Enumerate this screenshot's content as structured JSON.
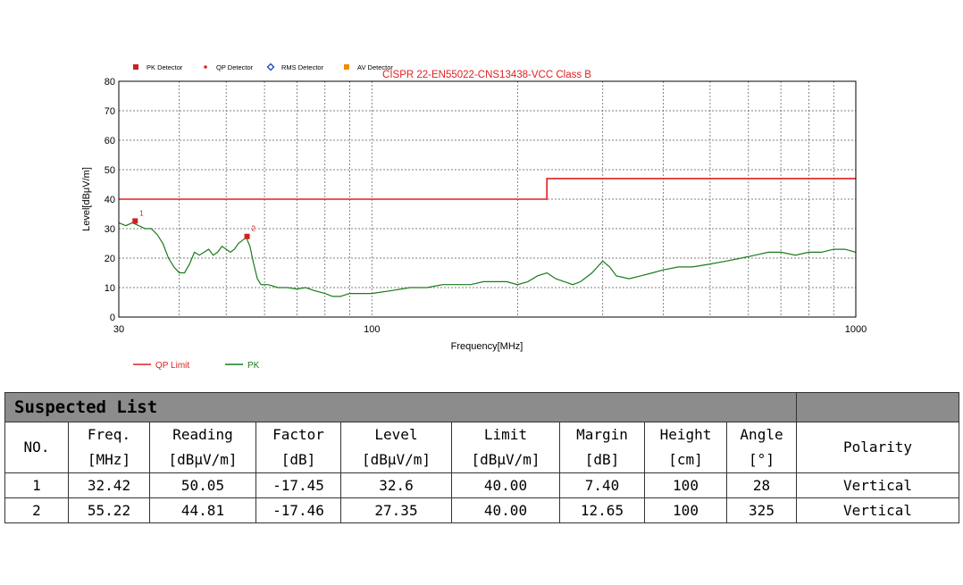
{
  "chart_data": {
    "type": "line",
    "title": "CISPR 22-EN55022-CNS13438-VCC Class B",
    "xlabel": "Frequency[MHz]",
    "ylabel": "Level[dBμV/m]",
    "xscale": "log",
    "xlim": [
      30,
      1000
    ],
    "ylim": [
      0,
      80
    ],
    "yticks": [
      0,
      10,
      20,
      30,
      40,
      50,
      60,
      70,
      80
    ],
    "xtick_labels": [
      {
        "value": 30,
        "label": "30"
      },
      {
        "value": 100,
        "label": "100"
      },
      {
        "value": 1000,
        "label": "1000"
      }
    ],
    "grid": true,
    "detector_legend": [
      {
        "name": "PK Detector",
        "color": "#cc2222",
        "marker": "square"
      },
      {
        "name": "QP Detector",
        "color": "#dd2222",
        "marker": "dot"
      },
      {
        "name": "RMS Detector",
        "color": "#1a3fbf",
        "marker": "diamond"
      },
      {
        "name": "AV Detector",
        "color": "#f08a00",
        "marker": "square"
      }
    ],
    "series": [
      {
        "name": "QP Limit",
        "color": "#e02020",
        "points": [
          [
            30,
            40
          ],
          [
            230,
            40
          ],
          [
            230,
            47
          ],
          [
            1000,
            47
          ]
        ]
      },
      {
        "name": "PK",
        "color": "#1a7a1a",
        "points": [
          [
            30,
            32
          ],
          [
            31,
            31
          ],
          [
            32,
            32
          ],
          [
            33,
            31
          ],
          [
            34,
            30
          ],
          [
            35,
            30
          ],
          [
            36,
            28
          ],
          [
            37,
            25
          ],
          [
            38,
            20
          ],
          [
            39,
            17
          ],
          [
            40,
            15
          ],
          [
            41,
            15
          ],
          [
            42,
            18
          ],
          [
            43,
            22
          ],
          [
            44,
            21
          ],
          [
            45,
            22
          ],
          [
            46,
            23
          ],
          [
            47,
            21
          ],
          [
            48,
            22
          ],
          [
            49,
            24
          ],
          [
            50,
            23
          ],
          [
            51,
            22
          ],
          [
            52,
            23
          ],
          [
            53,
            25
          ],
          [
            54,
            26
          ],
          [
            55,
            27
          ],
          [
            56,
            24
          ],
          [
            57,
            18
          ],
          [
            58,
            13
          ],
          [
            59,
            11
          ],
          [
            61,
            11
          ],
          [
            64,
            10
          ],
          [
            67,
            10
          ],
          [
            70,
            9.5
          ],
          [
            73,
            10
          ],
          [
            76,
            9
          ],
          [
            80,
            8
          ],
          [
            83,
            7
          ],
          [
            86,
            7
          ],
          [
            90,
            8
          ],
          [
            95,
            8
          ],
          [
            100,
            8
          ],
          [
            110,
            9
          ],
          [
            120,
            10
          ],
          [
            130,
            10
          ],
          [
            140,
            11
          ],
          [
            150,
            11
          ],
          [
            160,
            11
          ],
          [
            170,
            12
          ],
          [
            180,
            12
          ],
          [
            190,
            12
          ],
          [
            200,
            11
          ],
          [
            210,
            12
          ],
          [
            220,
            14
          ],
          [
            230,
            15
          ],
          [
            240,
            13
          ],
          [
            250,
            12
          ],
          [
            260,
            11
          ],
          [
            270,
            12
          ],
          [
            285,
            15
          ],
          [
            300,
            19
          ],
          [
            310,
            17
          ],
          [
            320,
            14
          ],
          [
            340,
            13
          ],
          [
            360,
            14
          ],
          [
            380,
            15
          ],
          [
            400,
            16
          ],
          [
            430,
            17
          ],
          [
            460,
            17
          ],
          [
            500,
            18
          ],
          [
            540,
            19
          ],
          [
            580,
            20
          ],
          [
            620,
            21
          ],
          [
            660,
            22
          ],
          [
            700,
            22
          ],
          [
            750,
            21
          ],
          [
            800,
            22
          ],
          [
            850,
            22
          ],
          [
            900,
            23
          ],
          [
            950,
            23
          ],
          [
            1000,
            22
          ]
        ]
      }
    ],
    "markers": [
      {
        "label": "1",
        "x": 32.42,
        "y": 32.6
      },
      {
        "label": "2",
        "x": 55.22,
        "y": 27.35
      }
    ]
  },
  "legend": [
    {
      "name": "QP Limit",
      "color": "#e02020"
    },
    {
      "name": "PK",
      "color": "#1a7a1a"
    }
  ],
  "table": {
    "title": "Suspected List",
    "headers": [
      {
        "top": "NO.",
        "bottom": ""
      },
      {
        "top": "Freq.",
        "bottom": "[MHz]"
      },
      {
        "top": "Reading",
        "bottom": "[dBμV/m]"
      },
      {
        "top": "Factor",
        "bottom": "[dB]"
      },
      {
        "top": "Level",
        "bottom": "[dBμV/m]"
      },
      {
        "top": "Limit",
        "bottom": "[dBμV/m]"
      },
      {
        "top": "Margin",
        "bottom": "[dB]"
      },
      {
        "top": "Height",
        "bottom": "[cm]"
      },
      {
        "top": "Angle",
        "bottom": "[°]"
      },
      {
        "top": "Polarity",
        "bottom": ""
      }
    ],
    "rows": [
      [
        "1",
        "32.42",
        "50.05",
        "-17.45",
        "32.6",
        "40.00",
        "7.40",
        "100",
        "28",
        "Vertical"
      ],
      [
        "2",
        "55.22",
        "44.81",
        "-17.46",
        "27.35",
        "40.00",
        "12.65",
        "100",
        "325",
        "Vertical"
      ]
    ]
  }
}
